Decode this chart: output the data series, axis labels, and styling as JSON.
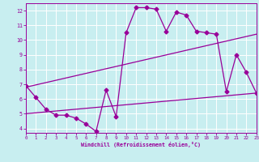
{
  "xlabel": "Windchill (Refroidissement éolien,°C)",
  "background_color": "#c8eef0",
  "grid_color": "#ffffff",
  "line_color": "#990099",
  "xlim": [
    0,
    23
  ],
  "ylim": [
    3.7,
    12.5
  ],
  "xticks": [
    0,
    1,
    2,
    3,
    4,
    5,
    6,
    7,
    8,
    9,
    10,
    11,
    12,
    13,
    14,
    15,
    16,
    17,
    18,
    19,
    20,
    21,
    22,
    23
  ],
  "yticks": [
    4,
    5,
    6,
    7,
    8,
    9,
    10,
    11,
    12
  ],
  "jagged_x": [
    0,
    1,
    2,
    3,
    4,
    5,
    6,
    7,
    8,
    9,
    10,
    11,
    12,
    13,
    14,
    15,
    16,
    17,
    18,
    19,
    20,
    21,
    22,
    23
  ],
  "jagged_y": [
    6.9,
    6.1,
    5.3,
    4.9,
    4.9,
    4.7,
    4.3,
    3.8,
    6.6,
    4.8,
    10.5,
    12.2,
    12.2,
    12.1,
    10.6,
    11.9,
    11.7,
    10.6,
    10.5,
    10.4,
    6.5,
    9.0,
    7.8,
    6.4
  ],
  "line1_x": [
    0,
    23
  ],
  "line1_y": [
    6.8,
    10.4
  ],
  "line2_x": [
    0,
    23
  ],
  "line2_y": [
    5.0,
    6.4
  ],
  "markersize": 2.5,
  "linewidth": 0.9
}
